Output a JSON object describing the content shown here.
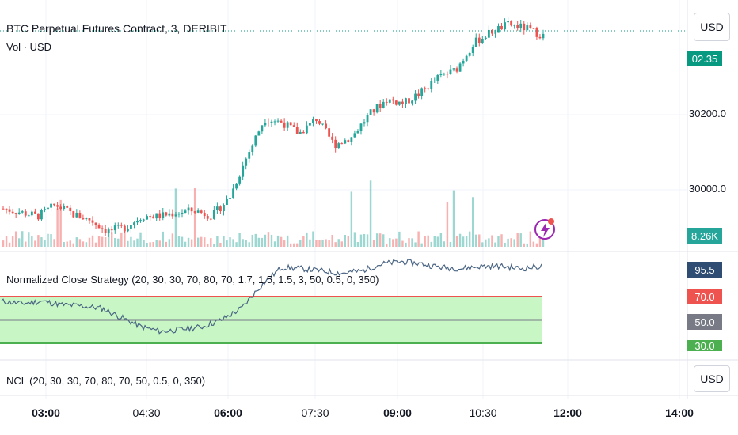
{
  "header": {
    "symbol_title": "BTC Perpetual Futures Contract, 3, DERIBIT",
    "volume_legend": "Vol · USD",
    "currency_button": "USD"
  },
  "price_axis": {
    "labels": [
      "30200.0",
      "30000.0"
    ],
    "current_price_tag": "02.35",
    "volume_tag": "8.26K"
  },
  "strategy_pane": {
    "legend": "Normalized Close Strategy (20, 30, 30, 70, 80, 70, 1.7, 1.5, 1.5, 3, 50, 0.5, 0, 350)",
    "tags": [
      "95.5",
      "70.0",
      "50.0",
      "30.0"
    ]
  },
  "ncl_pane": {
    "legend": "NCL (20, 30, 30, 70, 80, 70, 50, 0.5, 0, 350)",
    "currency_button": "USD"
  },
  "time_axis": {
    "labels": [
      {
        "text": "03:00",
        "bold": true
      },
      {
        "text": "04:30",
        "bold": false
      },
      {
        "text": "06:00",
        "bold": true
      },
      {
        "text": "07:30",
        "bold": false
      },
      {
        "text": "09:00",
        "bold": true
      },
      {
        "text": "10:30",
        "bold": false
      },
      {
        "text": "12:00",
        "bold": true
      },
      {
        "text": "14:00",
        "bold": true
      }
    ]
  },
  "colors": {
    "up": "#26a69a",
    "down": "#ef5350",
    "band_fill": "#c8f7c5",
    "line": "#4a6584",
    "tag_95": "#2f4d72",
    "tag_70": "#ef5350",
    "tag_50": "#787b86",
    "tag_30": "#4caf50",
    "price_tag": "#089981"
  },
  "icons": {
    "flash": "lightning-bolt-icon"
  },
  "chart_data": {
    "type": "candlestick",
    "y_ticks": [
      30000,
      30200
    ],
    "x": [
      "03:00",
      "04:30",
      "06:00",
      "07:30",
      "09:00",
      "10:30",
      "12:00",
      "14:00"
    ],
    "price_waypoints": [
      29950,
      29940,
      29930,
      29960,
      29935,
      29920,
      29890,
      29900,
      29930,
      29930,
      29940,
      29945,
      29930,
      29980,
      30090,
      30190,
      30180,
      30150,
      30190,
      30120,
      30140,
      30200,
      30240,
      30230,
      30260,
      30300,
      30320,
      30390,
      30420,
      30440,
      30430,
      30410
    ],
    "indicator": {
      "levels": [
        70,
        50,
        30
      ],
      "current": 95.5,
      "series": [
        66,
        64,
        66,
        63,
        62,
        60,
        52,
        44,
        40,
        42,
        44,
        50,
        60,
        80,
        95,
        94,
        92,
        90,
        92,
        98,
        100,
        98,
        95,
        94,
        96,
        96,
        94,
        96
      ]
    }
  }
}
